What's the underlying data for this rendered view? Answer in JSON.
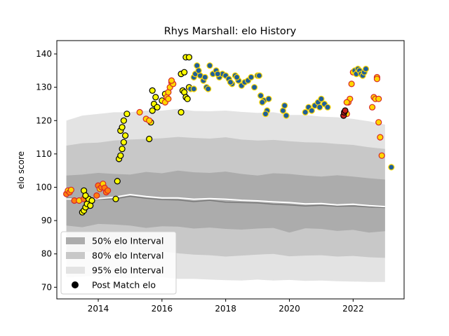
{
  "chart_data": {
    "type": "scatter",
    "title": "Rhys Marshall: elo History",
    "xlabel": "",
    "ylabel": "elo score",
    "xlim": [
      2012.7,
      2023.6
    ],
    "ylim": [
      66.5,
      144
    ],
    "xticks": [
      2014,
      2016,
      2018,
      2020,
      2022
    ],
    "yticks": [
      70,
      80,
      90,
      100,
      110,
      120,
      130,
      140
    ],
    "grid": false,
    "legend": {
      "placement": "lower-left",
      "entries": [
        {
          "label": "50% elo Interval",
          "color": "#acacac"
        },
        {
          "label": "80% elo Interval",
          "color": "#c8c8c8"
        },
        {
          "label": "95% elo Interval",
          "color": "#e3e3e3"
        },
        {
          "label": "Post Match elo",
          "color": "#000000"
        }
      ]
    },
    "bands": {
      "x": [
        2013.0,
        2013.5,
        2014.0,
        2014.5,
        2015.0,
        2015.5,
        2016.0,
        2016.5,
        2017.0,
        2017.5,
        2018.0,
        2018.5,
        2019.0,
        2019.5,
        2020.0,
        2020.5,
        2021.0,
        2021.5,
        2022.0,
        2022.5,
        2023.0
      ],
      "median": [
        96.8,
        96.5,
        96.4,
        96.5,
        97.3,
        96.7,
        96.3,
        96.2,
        95.7,
        96.1,
        95.5,
        95.4,
        95.3,
        94.9,
        94.7,
        94.4,
        94.6,
        94.3,
        94.4,
        94.1,
        93.9
      ],
      "mean": [
        96.5,
        96.5,
        96.6,
        97.0,
        97.8,
        97.2,
        96.8,
        96.8,
        96.4,
        96.6,
        96.4,
        96.1,
        95.9,
        95.6,
        95.4,
        95.0,
        95.1,
        94.7,
        94.9,
        94.5,
        94.2
      ],
      "p50_low": [
        88.5,
        88.0,
        89.0,
        88.8,
        88.5,
        87.8,
        88.3,
        88.2,
        87.6,
        87.9,
        87.5,
        87.3,
        87.6,
        87.8,
        86.4,
        87.7,
        87.5,
        86.9,
        87.2,
        86.4,
        86.8
      ],
      "p50_high": [
        103.5,
        103.8,
        104.3,
        104.0,
        103.8,
        104.6,
        104.2,
        105.0,
        104.5,
        104.3,
        104.7,
        104.0,
        103.5,
        104.2,
        104.0,
        103.5,
        103.2,
        103.6,
        103.2,
        102.7,
        102.3
      ],
      "p80_low": [
        80.5,
        80.5,
        80.8,
        80.5,
        80.2,
        80.3,
        80.7,
        80.2,
        79.8,
        79.6,
        79.2,
        79.5,
        79.8,
        80.0,
        79.3,
        79.5,
        79.6,
        79.2,
        79.4,
        79.0,
        78.8
      ],
      "p80_high": [
        112.5,
        113.2,
        113.4,
        114.0,
        114.3,
        114.5,
        114.7,
        115.1,
        114.8,
        114.6,
        115.0,
        114.3,
        114.0,
        114.2,
        113.8,
        113.5,
        113.4,
        113.0,
        112.7,
        112.0,
        111.5
      ],
      "p95_low": [
        73.0,
        73.2,
        73.5,
        73.0,
        72.8,
        73.0,
        73.0,
        72.5,
        72.5,
        72.3,
        72.1,
        72.0,
        72.3,
        72.0,
        72.2,
        71.9,
        72.0,
        71.8,
        71.7,
        71.6,
        71.6
      ],
      "p95_high": [
        120.0,
        121.5,
        122.0,
        122.5,
        122.5,
        123.0,
        123.0,
        123.5,
        122.9,
        122.8,
        123.0,
        122.6,
        122.3,
        122.5,
        121.7,
        121.7,
        121.2,
        121.0,
        120.5,
        119.8,
        118.8
      ]
    },
    "series": [
      {
        "name": "Post Match elo",
        "edge": "#d62728",
        "x": [
          2013.0,
          2013.05,
          2013.1,
          2013.15,
          2013.25,
          2013.4,
          2013.55,
          2013.95,
          2014.0,
          2014.05,
          2014.1,
          2014.15,
          2014.2,
          2014.25,
          2014.3
        ],
        "y": [
          98.0,
          99.0,
          98.5,
          99.2,
          96.0,
          96.0,
          96.5,
          97.5,
          100.5,
          99.5,
          100.0,
          101.0,
          99.8,
          98.5,
          99.0
        ],
        "fill": [
          "#ff7f0e",
          "#ffd700",
          "#ff7f0e",
          "#ffd700",
          "#ff7f0e",
          "#ffd700",
          "#ff7f0e",
          "#ff7f0e",
          "#ff7f0e",
          "#ffd700",
          "#ff7f0e",
          "#ffd700",
          "#ff7f0e",
          "#ff7f0e",
          "#ff7f0e"
        ]
      },
      {
        "name": "",
        "edge": "#000000",
        "x": [
          2013.5,
          2013.55,
          2013.6,
          2013.65,
          2013.7,
          2013.75,
          2013.8,
          2013.55,
          2013.6,
          2014.6,
          2014.65,
          2014.7,
          2014.75,
          2014.8,
          2014.85,
          2014.7,
          2014.75,
          2014.8,
          2014.9,
          2015.6,
          2015.65,
          2015.7,
          2015.75,
          2015.8,
          2015.7,
          2015.85,
          2016.0,
          2016.1,
          2016.6,
          2016.65,
          2016.7,
          2016.75,
          2016.8,
          2016.85,
          2016.6,
          2016.7,
          2016.75,
          2016.85,
          2014.55
        ],
        "y": [
          92.5,
          93.0,
          94.0,
          95.0,
          96.5,
          94.5,
          96.0,
          99.0,
          97.5,
          101.8,
          108.5,
          109.5,
          111.5,
          113.5,
          115.5,
          117.0,
          118.0,
          120.0,
          122.0,
          114.5,
          119.5,
          123.0,
          125.0,
          127.0,
          129.0,
          124.0,
          126.0,
          128.0,
          122.5,
          129.0,
          128.5,
          127.0,
          126.5,
          130.0,
          134.0,
          134.5,
          139.0,
          139.0,
          96.5
        ],
        "fill": "#ffff00"
      },
      {
        "name": "",
        "edge": "#d62728",
        "x": [
          2015.3,
          2015.5,
          2015.6,
          2016.1,
          2016.15,
          2016.2,
          2016.25,
          2016.3,
          2016.35,
          2016.2,
          2016.3,
          2021.8,
          2021.85,
          2021.9,
          2021.95,
          2022.0,
          2021.8,
          2022.6,
          2022.65,
          2022.7,
          2022.75,
          2022.8,
          2022.85,
          2022.9,
          2022.75,
          2022.8
        ],
        "y": [
          122.5,
          120.5,
          120.0,
          125.5,
          127.0,
          128.5,
          130.0,
          131.5,
          131.0,
          126.5,
          132.0,
          122.0,
          125.5,
          126.5,
          131.0,
          134.5,
          125.5,
          124.0,
          127.0,
          126.5,
          133.0,
          119.5,
          115.0,
          109.5,
          132.5,
          126.5
        ],
        "fill": "#ffd700"
      },
      {
        "name": "",
        "edge": "#ffd700",
        "x": [
          2016.9,
          2017.0,
          2017.05,
          2017.1,
          2017.2,
          2017.3,
          2017.35,
          2017.4,
          2017.5,
          2017.6,
          2017.7,
          2017.8,
          2017.9,
          2018.0,
          2018.1,
          2018.2,
          2018.3,
          2018.4,
          2018.5,
          2018.6,
          2018.7,
          2018.8,
          2018.9,
          2019.0,
          2019.1,
          2019.2,
          2019.3,
          2019.35,
          2019.8,
          2019.85,
          2019.9,
          2020.5,
          2020.6,
          2020.7,
          2020.8,
          2020.9,
          2021.0,
          2021.1,
          2021.2,
          2022.05,
          2022.1,
          2022.15,
          2022.2,
          2022.25,
          2022.3,
          2022.35,
          2022.4,
          2023.2,
          2017.0,
          2017.15,
          2017.45,
          2017.75,
          2018.15,
          2018.35,
          2019.05,
          2019.15,
          2019.25,
          2020.95
        ],
        "y": [
          129.5,
          133.0,
          134.0,
          136.5,
          133.5,
          132.0,
          133.0,
          130.0,
          136.5,
          134.0,
          135.0,
          133.0,
          134.0,
          133.5,
          132.5,
          131.0,
          133.5,
          132.0,
          130.5,
          131.5,
          132.0,
          133.0,
          130.0,
          133.5,
          127.5,
          126.0,
          123.0,
          126.5,
          123.0,
          124.5,
          121.5,
          122.5,
          124.0,
          123.0,
          124.5,
          125.5,
          126.5,
          125.0,
          124.0,
          135.0,
          134.0,
          135.5,
          135.0,
          134.0,
          133.5,
          134.5,
          135.5,
          106.0,
          129.5,
          135.0,
          129.5,
          134.0,
          131.5,
          133.0,
          133.5,
          125.5,
          122.0,
          124.0
        ],
        "fill": "#1f5f99"
      },
      {
        "name": "",
        "edge": "#000000",
        "x": [
          2021.7,
          2021.72,
          2021.75
        ],
        "y": [
          121.5,
          122.5,
          123.0
        ],
        "fill": "#c82020"
      }
    ]
  }
}
